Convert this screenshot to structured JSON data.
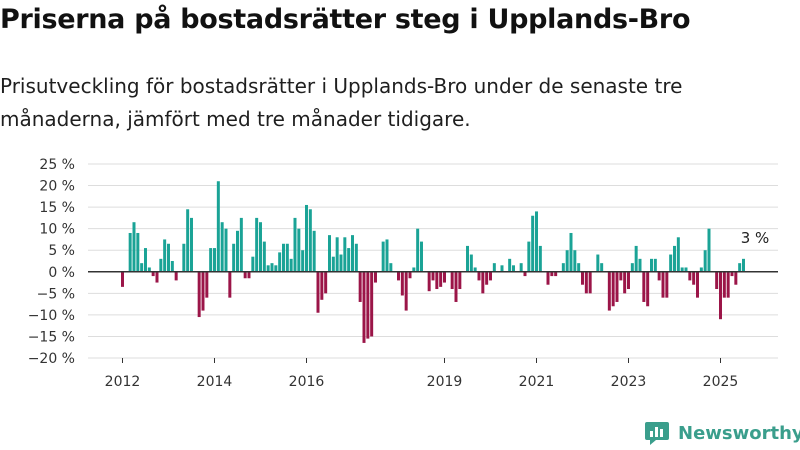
{
  "title": "Priserna på bostadsrätter steg i Upplands-Bro",
  "subtitle": "Prisutveckling för bostadsrätter i Upplands-Bro under de senaste tre månaderna, jämfört med tre månader tidigare.",
  "brand": {
    "name": "Newsworthy",
    "color": "#3a9e8c"
  },
  "colors": {
    "positive": "#1aa396",
    "negative": "#9b1548",
    "grid": "#dddddd",
    "zero_line": "#333333"
  },
  "chart_data": {
    "type": "bar",
    "title": "",
    "xlabel": "",
    "ylabel": "",
    "ylim": [
      -20,
      25
    ],
    "xlim": [
      "2011-04",
      "2026-04"
    ],
    "y_ticks": [
      {
        "value": 25,
        "label": "25 %"
      },
      {
        "value": 20,
        "label": "20 %"
      },
      {
        "value": 15,
        "label": "15 %"
      },
      {
        "value": 10,
        "label": "10 %"
      },
      {
        "value": 5,
        "label": "5 %"
      },
      {
        "value": 0,
        "label": "0 %"
      },
      {
        "value": -5,
        "label": "−5 %"
      },
      {
        "value": -10,
        "label": "−10 %"
      },
      {
        "value": -15,
        "label": "−15 %"
      },
      {
        "value": -20,
        "label": "−20 %"
      }
    ],
    "x_ticks": [
      {
        "value": "2012-01",
        "label": "2012"
      },
      {
        "value": "2014-01",
        "label": "2014"
      },
      {
        "value": "2016-01",
        "label": "2016"
      },
      {
        "value": "2019-01",
        "label": "2019"
      },
      {
        "value": "2021-01",
        "label": "2021"
      },
      {
        "value": "2023-01",
        "label": "2023"
      },
      {
        "value": "2025-01",
        "label": "2025"
      }
    ],
    "grid": true,
    "annotation": {
      "text": "3 %",
      "x": "2025-10"
    },
    "start_month": "2012-01",
    "values": [
      -3.5,
      0,
      9,
      11.5,
      9,
      2,
      5.5,
      1,
      -1,
      -2.5,
      3,
      7.5,
      6.5,
      2.5,
      -2,
      0,
      6.5,
      14.5,
      12.5,
      0,
      -10.5,
      -9,
      -6,
      5.5,
      5.5,
      21,
      11.5,
      10,
      -6,
      6.5,
      9.5,
      12.5,
      -1.5,
      -1.5,
      3.5,
      12.5,
      11.5,
      7,
      1.5,
      2,
      1.5,
      4.5,
      6.5,
      6.5,
      3,
      12.5,
      10,
      5,
      15.5,
      14.5,
      9.5,
      -9.5,
      -6.5,
      -5,
      8.5,
      3.5,
      8,
      4,
      8,
      5.5,
      8.5,
      6.5,
      -7,
      -16.5,
      -15.5,
      -15,
      -2.5,
      0,
      7,
      7.5,
      2,
      0,
      -2,
      -5.5,
      -9,
      -1.5,
      1,
      10,
      7,
      0,
      -4.5,
      -2,
      -4,
      -3.5,
      -2.5,
      0,
      -4,
      -7,
      -4,
      0,
      6,
      4,
      1,
      -2,
      -5,
      -3,
      -2,
      2,
      0,
      1.5,
      0,
      3,
      1.5,
      0,
      2,
      -1,
      7,
      13,
      14,
      6,
      0,
      -3,
      -1,
      -1,
      0,
      2,
      5,
      9,
      5,
      2,
      -3,
      -5,
      -5,
      0,
      4,
      2,
      0,
      -9,
      -8,
      -7,
      -2,
      -5,
      -4,
      2,
      6,
      3,
      -7,
      -8,
      3,
      3,
      -2,
      -6,
      -6,
      4,
      6,
      8,
      1,
      1,
      -2,
      -3,
      -6,
      1,
      5,
      10,
      0,
      -4,
      -11,
      -6,
      -6,
      -1,
      -3,
      2,
      3
    ]
  }
}
